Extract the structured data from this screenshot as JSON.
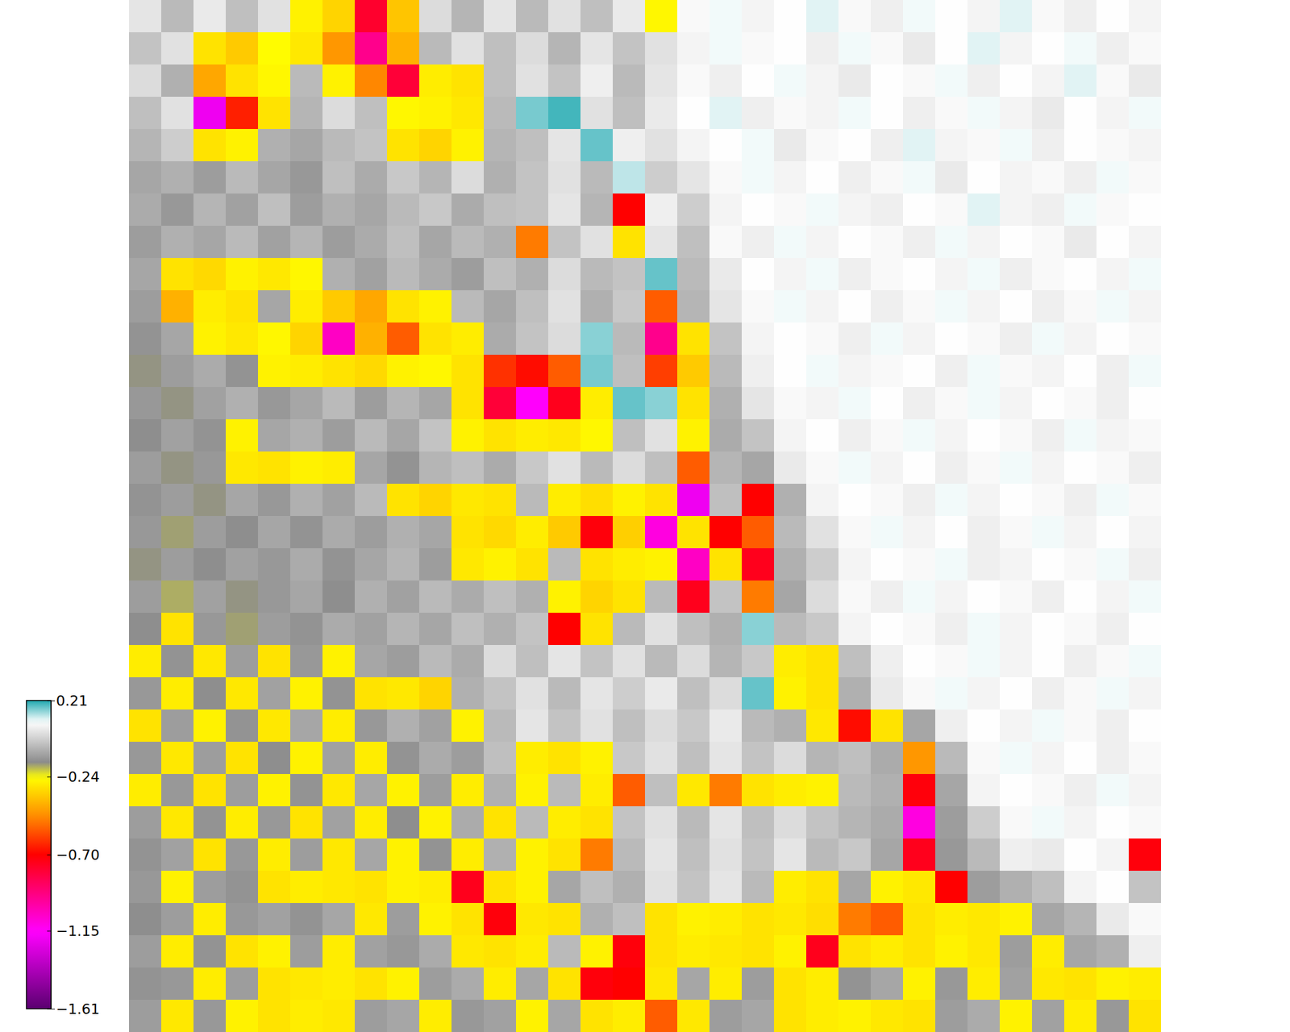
{
  "chart_data": {
    "type": "heatmap",
    "zlim": [
      -1.61,
      0.21
    ],
    "zticks": [
      0.21,
      {
        "value": -0.24,
        "label": "−0.24"
      },
      {
        "value": -0.7,
        "label": "−0.70"
      },
      {
        "value": -1.15,
        "label": "−1.15"
      },
      {
        "value": -1.61,
        "label": "−1.61"
      }
    ],
    "cells": [
      [
        0.03,
        -0.06,
        0.04,
        -0.05,
        0.02,
        -0.27,
        -0.33,
        -0.78,
        -0.36,
        0.01,
        -0.07,
        0.03,
        -0.06,
        0.02,
        -0.05,
        0.04,
        -0.26,
        0.07,
        0.09,
        0.06,
        0.08,
        0.1,
        0.07,
        0.05,
        0.09,
        0.08,
        0.06,
        0.1,
        0.07,
        0.05,
        0.08,
        0.06
      ],
      [
        -0.04,
        0.02,
        -0.3,
        -0.35,
        -0.25,
        -0.29,
        -0.45,
        -0.95,
        -0.4,
        -0.06,
        0.02,
        -0.05,
        0.01,
        -0.07,
        0.03,
        -0.04,
        0.02,
        0.06,
        0.09,
        0.07,
        0.08,
        0.05,
        0.09,
        0.07,
        0.04,
        0.08,
        0.1,
        0.06,
        0.08,
        0.09,
        0.05,
        0.07
      ],
      [
        0.01,
        -0.08,
        -0.42,
        -0.3,
        -0.26,
        -0.06,
        -0.27,
        -0.48,
        -0.8,
        -0.28,
        -0.3,
        -0.05,
        0.02,
        -0.04,
        0.05,
        -0.06,
        0.03,
        0.07,
        0.05,
        0.08,
        0.09,
        0.06,
        0.04,
        0.08,
        0.07,
        0.09,
        0.05,
        0.08,
        0.06,
        0.1,
        0.07,
        0.04
      ],
      [
        -0.05,
        0.02,
        -1.2,
        -0.65,
        -0.3,
        -0.07,
        0.01,
        -0.05,
        -0.26,
        -0.27,
        -0.29,
        -0.06,
        0.16,
        0.19,
        0.02,
        -0.05,
        0.04,
        0.08,
        0.1,
        0.05,
        0.07,
        0.06,
        0.09,
        0.08,
        0.05,
        0.07,
        0.09,
        0.06,
        0.04,
        0.08,
        0.06,
        0.09
      ],
      [
        -0.07,
        -0.02,
        -0.3,
        -0.27,
        -0.08,
        -0.1,
        -0.06,
        -0.04,
        -0.3,
        -0.33,
        -0.27,
        -0.07,
        -0.05,
        0.03,
        0.17,
        0.05,
        0.02,
        0.06,
        0.08,
        0.09,
        0.04,
        0.07,
        0.08,
        0.05,
        0.1,
        0.06,
        0.07,
        0.09,
        0.05,
        0.08,
        0.07,
        0.06
      ],
      [
        -0.1,
        -0.08,
        -0.12,
        -0.06,
        -0.1,
        -0.13,
        -0.05,
        -0.09,
        -0.03,
        -0.07,
        0.01,
        -0.08,
        -0.04,
        0.02,
        -0.06,
        0.12,
        -0.02,
        0.03,
        0.07,
        0.09,
        0.06,
        0.08,
        0.05,
        0.07,
        0.09,
        0.04,
        0.08,
        0.06,
        0.07,
        0.05,
        0.09,
        0.07
      ],
      [
        -0.09,
        -0.13,
        -0.07,
        -0.11,
        -0.05,
        -0.12,
        -0.08,
        -0.1,
        -0.06,
        -0.03,
        -0.09,
        -0.05,
        -0.04,
        0.03,
        -0.07,
        -0.7,
        0.05,
        -0.02,
        0.06,
        0.08,
        0.07,
        0.09,
        0.06,
        0.05,
        0.08,
        0.07,
        0.1,
        0.06,
        0.05,
        0.09,
        0.07,
        0.08
      ],
      [
        -0.12,
        -0.08,
        -0.1,
        -0.06,
        -0.11,
        -0.07,
        -0.12,
        -0.09,
        -0.05,
        -0.1,
        -0.06,
        -0.08,
        -0.5,
        -0.04,
        0.02,
        -0.3,
        0.03,
        -0.05,
        0.07,
        0.05,
        0.09,
        0.06,
        0.08,
        0.07,
        0.05,
        0.09,
        0.06,
        0.08,
        0.07,
        0.04,
        0.08,
        0.06
      ],
      [
        -0.1,
        -0.3,
        -0.32,
        -0.27,
        -0.29,
        -0.26,
        -0.08,
        -0.11,
        -0.06,
        -0.09,
        -0.12,
        -0.05,
        -0.08,
        0.01,
        -0.06,
        -0.04,
        0.17,
        -0.06,
        0.04,
        0.08,
        0.06,
        0.09,
        0.05,
        0.07,
        0.08,
        0.06,
        0.09,
        0.05,
        0.07,
        0.08,
        0.06,
        0.09
      ],
      [
        -0.12,
        -0.4,
        -0.28,
        -0.3,
        -0.1,
        -0.28,
        -0.35,
        -0.42,
        -0.3,
        -0.27,
        -0.06,
        -0.1,
        -0.05,
        0.02,
        -0.08,
        -0.03,
        -0.55,
        -0.07,
        0.03,
        0.07,
        0.09,
        0.06,
        0.08,
        0.05,
        0.07,
        0.09,
        0.06,
        0.08,
        0.05,
        0.07,
        0.09,
        0.06
      ],
      [
        -0.14,
        -0.1,
        -0.27,
        -0.29,
        -0.26,
        -0.33,
        -1.05,
        -0.4,
        -0.55,
        -0.3,
        -0.28,
        -0.09,
        -0.04,
        0.01,
        0.15,
        -0.06,
        -0.95,
        -0.3,
        -0.04,
        0.06,
        0.08,
        0.07,
        0.05,
        0.09,
        0.06,
        0.08,
        0.07,
        0.05,
        0.09,
        0.06,
        0.08,
        0.07
      ],
      [
        -0.16,
        -0.12,
        -0.09,
        -0.14,
        -0.27,
        -0.28,
        -0.3,
        -0.32,
        -0.27,
        -0.26,
        -0.3,
        -0.62,
        -0.68,
        -0.55,
        0.16,
        -0.05,
        -0.6,
        -0.35,
        -0.06,
        0.05,
        0.08,
        0.09,
        0.06,
        0.07,
        0.08,
        0.05,
        0.09,
        0.07,
        0.06,
        0.08,
        0.05,
        0.09
      ],
      [
        -0.13,
        -0.16,
        -0.11,
        -0.08,
        -0.13,
        -0.1,
        -0.06,
        -0.12,
        -0.07,
        -0.1,
        -0.3,
        -0.8,
        -1.15,
        -0.75,
        -0.28,
        0.17,
        0.15,
        -0.3,
        -0.08,
        0.03,
        0.07,
        0.06,
        0.09,
        0.08,
        0.05,
        0.07,
        0.09,
        0.06,
        0.08,
        0.07,
        0.05,
        0.08
      ],
      [
        -0.15,
        -0.11,
        -0.14,
        -0.27,
        -0.1,
        -0.08,
        -0.12,
        -0.06,
        -0.1,
        -0.04,
        -0.27,
        -0.3,
        -0.28,
        -0.29,
        -0.26,
        -0.05,
        0.02,
        -0.27,
        -0.09,
        -0.04,
        0.06,
        0.08,
        0.05,
        0.07,
        0.09,
        0.06,
        0.08,
        0.07,
        0.05,
        0.09,
        0.06,
        0.07
      ],
      [
        -0.12,
        -0.16,
        -0.13,
        -0.29,
        -0.3,
        -0.27,
        -0.28,
        -0.1,
        -0.14,
        -0.07,
        -0.05,
        -0.09,
        -0.03,
        0.02,
        -0.06,
        0.01,
        -0.05,
        -0.55,
        -0.07,
        -0.1,
        0.04,
        0.07,
        0.09,
        0.06,
        0.08,
        0.05,
        0.07,
        0.09,
        0.06,
        0.08,
        0.07,
        0.05
      ],
      [
        -0.14,
        -0.12,
        -0.16,
        -0.1,
        -0.13,
        -0.08,
        -0.11,
        -0.06,
        -0.3,
        -0.33,
        -0.29,
        -0.3,
        -0.06,
        -0.28,
        -0.31,
        -0.27,
        -0.3,
        -1.2,
        -0.05,
        -0.7,
        -0.08,
        0.06,
        0.08,
        0.07,
        0.05,
        0.09,
        0.06,
        0.08,
        0.07,
        0.05,
        0.09,
        0.07
      ],
      [
        -0.13,
        -0.17,
        -0.12,
        -0.15,
        -0.1,
        -0.14,
        -0.09,
        -0.12,
        -0.08,
        -0.1,
        -0.3,
        -0.32,
        -0.28,
        -0.35,
        -0.72,
        -0.34,
        -1.1,
        -0.3,
        -0.7,
        -0.55,
        -0.06,
        0.02,
        0.07,
        0.09,
        0.06,
        0.08,
        0.05,
        0.07,
        0.09,
        0.06,
        0.08,
        0.06
      ],
      [
        -0.16,
        -0.12,
        -0.15,
        -0.11,
        -0.13,
        -0.09,
        -0.14,
        -0.1,
        -0.07,
        -0.12,
        -0.29,
        -0.27,
        -0.3,
        -0.06,
        -0.3,
        -0.28,
        -0.27,
        -1.05,
        -0.3,
        -0.75,
        -0.08,
        -0.02,
        0.06,
        0.08,
        0.07,
        0.09,
        0.05,
        0.06,
        0.08,
        0.07,
        0.09,
        0.05
      ],
      [
        -0.12,
        -0.18,
        -0.11,
        -0.16,
        -0.13,
        -0.1,
        -0.15,
        -0.08,
        -0.11,
        -0.06,
        -0.09,
        -0.05,
        -0.08,
        -0.27,
        -0.33,
        -0.3,
        -0.06,
        -0.75,
        -0.04,
        -0.5,
        -0.1,
        0.01,
        0.07,
        0.05,
        0.09,
        0.06,
        0.08,
        0.07,
        0.05,
        0.08,
        0.06,
        0.09
      ],
      [
        -0.15,
        -0.3,
        -0.13,
        -0.17,
        -0.12,
        -0.14,
        -0.09,
        -0.11,
        -0.07,
        -0.1,
        -0.05,
        -0.08,
        -0.04,
        -0.7,
        -0.3,
        -0.06,
        0.02,
        -0.05,
        -0.08,
        0.15,
        -0.06,
        -0.03,
        0.06,
        0.08,
        0.07,
        0.05,
        0.09,
        0.06,
        0.08,
        0.07,
        0.05,
        0.08
      ],
      [
        -0.28,
        -0.14,
        -0.29,
        -0.12,
        -0.3,
        -0.13,
        -0.27,
        -0.1,
        -0.12,
        -0.06,
        -0.09,
        0.01,
        -0.05,
        0.03,
        -0.04,
        0.02,
        -0.06,
        0.01,
        -0.07,
        -0.03,
        -0.28,
        -0.3,
        -0.05,
        0.05,
        0.08,
        0.07,
        0.09,
        0.06,
        0.08,
        0.05,
        0.07,
        0.09
      ],
      [
        -0.13,
        -0.28,
        -0.15,
        -0.29,
        -0.11,
        -0.27,
        -0.14,
        -0.3,
        -0.29,
        -0.33,
        -0.08,
        -0.04,
        0.02,
        -0.06,
        0.03,
        -0.02,
        0.04,
        -0.05,
        0.01,
        0.17,
        -0.27,
        -0.3,
        -0.08,
        0.04,
        0.07,
        0.09,
        0.06,
        0.08,
        0.05,
        0.07,
        0.09,
        0.06
      ],
      [
        -0.3,
        -0.12,
        -0.27,
        -0.14,
        -0.29,
        -0.1,
        -0.28,
        -0.13,
        -0.08,
        -0.11,
        -0.27,
        -0.06,
        0.03,
        -0.04,
        0.02,
        -0.05,
        0.01,
        -0.03,
        0.04,
        -0.06,
        -0.08,
        -0.29,
        -0.68,
        -0.3,
        -0.1,
        0.05,
        0.08,
        0.06,
        0.09,
        0.07,
        0.05,
        0.08
      ],
      [
        -0.13,
        -0.29,
        -0.12,
        -0.3,
        -0.15,
        -0.27,
        -0.11,
        -0.28,
        -0.14,
        -0.09,
        -0.12,
        -0.05,
        -0.28,
        -0.3,
        -0.27,
        -0.03,
        0.02,
        -0.05,
        0.03,
        -0.04,
        0.01,
        -0.07,
        -0.05,
        -0.09,
        -0.45,
        -0.06,
        0.07,
        0.09,
        0.06,
        0.08,
        0.05,
        0.07
      ],
      [
        -0.28,
        -0.13,
        -0.3,
        -0.12,
        -0.27,
        -0.14,
        -0.29,
        -0.1,
        -0.27,
        -0.12,
        -0.28,
        -0.08,
        -0.27,
        -0.06,
        -0.28,
        -0.55,
        -0.05,
        -0.29,
        -0.5,
        -0.3,
        -0.28,
        -0.27,
        -0.06,
        -0.08,
        -0.72,
        -0.1,
        0.06,
        0.08,
        0.07,
        0.05,
        0.09,
        0.06
      ],
      [
        -0.12,
        -0.29,
        -0.14,
        -0.28,
        -0.13,
        -0.3,
        -0.11,
        -0.28,
        -0.15,
        -0.27,
        -0.09,
        -0.3,
        -0.06,
        -0.28,
        -0.3,
        -0.04,
        0.02,
        -0.06,
        0.03,
        -0.05,
        0.01,
        -0.04,
        -0.07,
        -0.09,
        -1.1,
        -0.12,
        -0.02,
        0.07,
        0.09,
        0.06,
        0.08,
        0.07
      ],
      [
        -0.14,
        -0.11,
        -0.3,
        -0.13,
        -0.28,
        -0.12,
        -0.29,
        -0.1,
        -0.27,
        -0.14,
        -0.28,
        -0.08,
        -0.27,
        -0.3,
        -0.5,
        -0.06,
        0.03,
        -0.05,
        0.02,
        -0.04,
        0.03,
        -0.06,
        -0.03,
        -0.1,
        -0.75,
        -0.13,
        -0.06,
        0.05,
        0.04,
        0.08,
        0.06,
        -0.72
      ],
      [
        -0.13,
        -0.27,
        -0.12,
        -0.14,
        -0.3,
        -0.28,
        -0.29,
        -0.3,
        -0.27,
        -0.28,
        -0.75,
        -0.3,
        -0.27,
        -0.1,
        -0.05,
        -0.08,
        0.02,
        -0.04,
        0.03,
        -0.06,
        -0.28,
        -0.3,
        -0.1,
        -0.27,
        -0.29,
        -0.7,
        -0.12,
        -0.08,
        -0.05,
        0.06,
        0.08,
        -0.04
      ],
      [
        -0.15,
        -0.12,
        -0.28,
        -0.13,
        -0.11,
        -0.14,
        -0.1,
        -0.29,
        -0.12,
        -0.27,
        -0.3,
        -0.72,
        -0.29,
        -0.3,
        -0.08,
        -0.05,
        -0.3,
        -0.27,
        -0.28,
        -0.3,
        -0.29,
        -0.31,
        -0.5,
        -0.55,
        -0.3,
        -0.28,
        -0.29,
        -0.27,
        -0.1,
        -0.07,
        0.04,
        0.07
      ],
      [
        -0.12,
        -0.28,
        -0.14,
        -0.3,
        -0.27,
        -0.12,
        -0.28,
        -0.11,
        -0.13,
        -0.09,
        -0.29,
        -0.3,
        -0.28,
        -0.06,
        -0.27,
        -0.72,
        -0.3,
        -0.28,
        -0.29,
        -0.3,
        -0.27,
        -0.75,
        -0.3,
        -0.28,
        -0.3,
        -0.27,
        -0.29,
        -0.12,
        -0.28,
        -0.1,
        -0.08,
        0.05
      ],
      [
        -0.14,
        -0.13,
        -0.28,
        -0.12,
        -0.3,
        -0.29,
        -0.28,
        -0.3,
        -0.27,
        -0.12,
        -0.09,
        -0.28,
        -0.1,
        -0.3,
        -0.72,
        -0.7,
        -0.29,
        -0.1,
        -0.28,
        -0.12,
        -0.3,
        -0.28,
        -0.14,
        -0.1,
        -0.27,
        -0.13,
        -0.28,
        -0.11,
        -0.29,
        -0.3,
        -0.27,
        -0.28
      ],
      [
        -0.12,
        -0.29,
        -0.13,
        -0.27,
        -0.3,
        -0.28,
        -0.29,
        -0.12,
        -0.1,
        -0.28,
        -0.13,
        -0.11,
        -0.27,
        -0.1,
        -0.3,
        -0.28,
        -0.55,
        -0.29,
        -0.12,
        -0.1,
        -0.3,
        -0.28,
        -0.27,
        -0.29,
        -0.3,
        -0.12,
        -0.09,
        -0.27,
        -0.11,
        -0.28,
        -0.13,
        -0.3
      ]
    ]
  }
}
